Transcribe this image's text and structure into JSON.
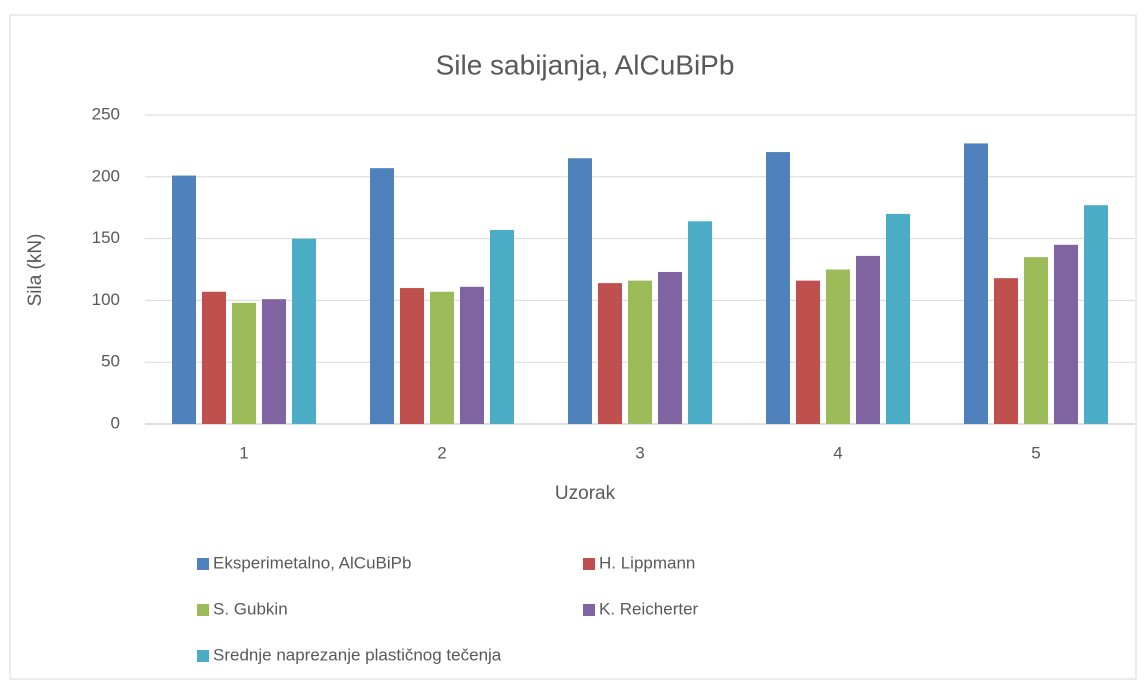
{
  "chart_data": {
    "type": "bar",
    "title": "Sile sabijanja, AlCuBiPb",
    "x_label": "Uzorak",
    "y_label": "Sila (kN)",
    "categories": [
      "1",
      "2",
      "3",
      "4",
      "5"
    ],
    "series": [
      {
        "name": "Eksperimetalno, AlCuBiPb",
        "color": "#4f81bd",
        "values": [
          201,
          207,
          215,
          220,
          227
        ]
      },
      {
        "name": "H. Lippmann",
        "color": "#c0504d",
        "values": [
          107,
          110,
          114,
          116,
          118
        ]
      },
      {
        "name": "S. Gubkin",
        "color": "#9bbb59",
        "values": [
          98,
          107,
          116,
          125,
          135
        ]
      },
      {
        "name": "K. Reicherter",
        "color": "#8064a2",
        "values": [
          101,
          111,
          123,
          136,
          145
        ]
      },
      {
        "name": "Srednje naprezanje plastičnog tečenja",
        "color": "#4bacc6",
        "values": [
          150,
          157,
          164,
          170,
          177
        ]
      }
    ],
    "ylim": [
      0,
      250
    ],
    "yticks": [
      0,
      50,
      100,
      150,
      200,
      250
    ],
    "grid": true,
    "legend": "bottom"
  }
}
